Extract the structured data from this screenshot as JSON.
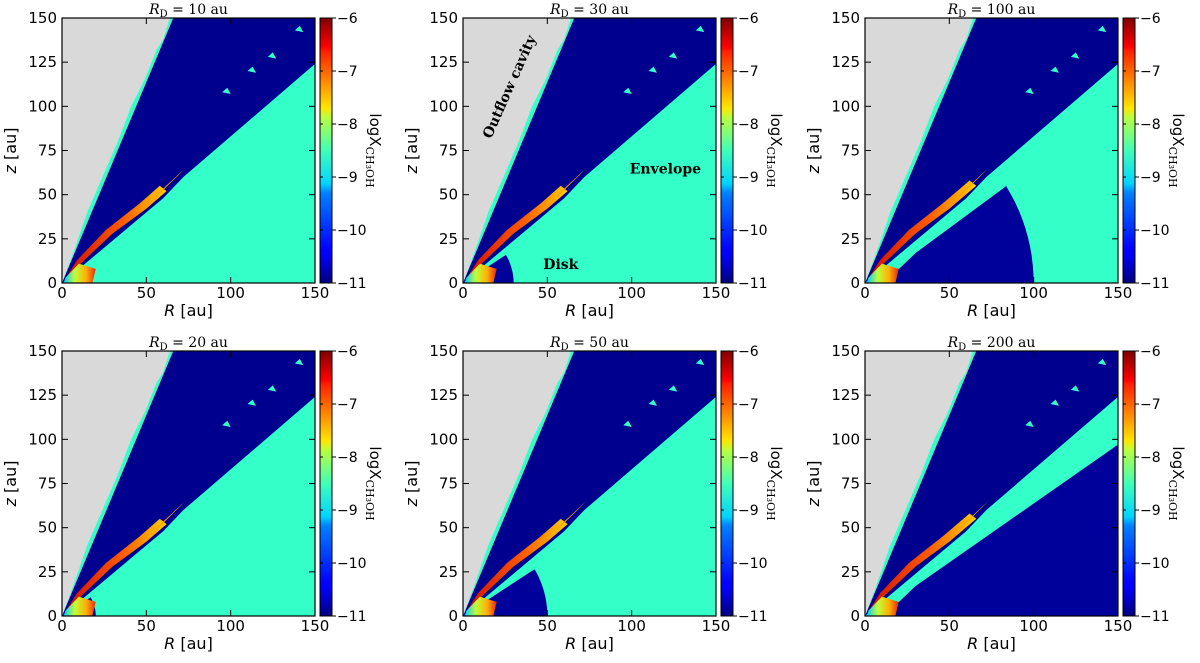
{
  "figure": {
    "colorbar_ticks": [
      "−6",
      "−7",
      "−8",
      "−9",
      "−10",
      "−11"
    ],
    "colorbar_label_prefix": "logX",
    "colorbar_label_sub": "CH₃OH",
    "colormap": "jet",
    "colors": {
      "cavity": "#d9d9d9",
      "outflow_wall": "#00008f",
      "envelope": "#35ffc8",
      "disk_inner": "#00009a",
      "ridge_hot": "#e02000",
      "ridge_warm": "#ffa000",
      "ridge_cool": "#e8f000"
    },
    "region_labels": {
      "outflow": "Outflow cavity",
      "envelope": "Envelope",
      "disk": "Disk"
    }
  },
  "chart_data": [
    {
      "type": "heatmap",
      "title": "R_D = 10 au",
      "title_main": "R",
      "title_sub": "D",
      "title_rest": " = 10 au",
      "disk_radius_au": 10,
      "xlabel": "R [au]",
      "ylabel": "z [au]",
      "xlim": [
        0,
        150
      ],
      "ylim": [
        0,
        150
      ],
      "xticks": [
        "0",
        "50",
        "100",
        "150"
      ],
      "yticks": [
        "0",
        "25",
        "50",
        "75",
        "100",
        "125",
        "150"
      ],
      "clim": [
        -11,
        -6
      ],
      "colorbar_label": "logX_CH3OH",
      "levels": {
        "cavity": "masked",
        "outflow_wall": -11,
        "envelope": -9,
        "disk": -11
      }
    },
    {
      "type": "heatmap",
      "title": "R_D = 30 au",
      "title_main": "R",
      "title_sub": "D",
      "title_rest": " = 30 au",
      "disk_radius_au": 30,
      "xlabel": "R [au]",
      "ylabel": "z [au]",
      "xlim": [
        0,
        150
      ],
      "ylim": [
        0,
        150
      ],
      "xticks": [
        "0",
        "50",
        "100",
        "150"
      ],
      "yticks": [
        "0",
        "25",
        "50",
        "75",
        "100",
        "125",
        "150"
      ],
      "clim": [
        -11,
        -6
      ],
      "colorbar_label": "logX_CH3OH",
      "annotations": [
        "Outflow cavity",
        "Envelope",
        "Disk"
      ],
      "levels": {
        "cavity": "masked",
        "outflow_wall": -11,
        "envelope": -9,
        "disk": -11
      }
    },
    {
      "type": "heatmap",
      "title": "R_D = 100 au",
      "title_main": "R",
      "title_sub": "D",
      "title_rest": " = 100 au",
      "disk_radius_au": 100,
      "xlabel": "R [au]",
      "ylabel": "z [au]",
      "xlim": [
        0,
        150
      ],
      "ylim": [
        0,
        150
      ],
      "xticks": [
        "0",
        "50",
        "100",
        "150"
      ],
      "yticks": [
        "0",
        "25",
        "50",
        "75",
        "100",
        "125",
        "150"
      ],
      "clim": [
        -11,
        -6
      ],
      "colorbar_label": "logX_CH3OH",
      "levels": {
        "cavity": "masked",
        "outflow_wall": -11,
        "envelope": -9,
        "disk": -11
      }
    },
    {
      "type": "heatmap",
      "title": "R_D = 20 au",
      "title_main": "R",
      "title_sub": "D",
      "title_rest": " = 20 au",
      "disk_radius_au": 20,
      "xlabel": "R [au]",
      "ylabel": "z [au]",
      "xlim": [
        0,
        150
      ],
      "ylim": [
        0,
        150
      ],
      "xticks": [
        "0",
        "50",
        "100",
        "150"
      ],
      "yticks": [
        "0",
        "25",
        "50",
        "75",
        "100",
        "125",
        "150"
      ],
      "clim": [
        -11,
        -6
      ],
      "colorbar_label": "logX_CH3OH",
      "levels": {
        "cavity": "masked",
        "outflow_wall": -11,
        "envelope": -9,
        "disk": -11
      }
    },
    {
      "type": "heatmap",
      "title": "R_D = 50 au",
      "title_main": "R",
      "title_sub": "D",
      "title_rest": " = 50 au",
      "disk_radius_au": 50,
      "xlabel": "R [au]",
      "ylabel": "z [au]",
      "xlim": [
        0,
        150
      ],
      "ylim": [
        0,
        150
      ],
      "xticks": [
        "0",
        "50",
        "100",
        "150"
      ],
      "yticks": [
        "0",
        "25",
        "50",
        "75",
        "100",
        "125",
        "150"
      ],
      "clim": [
        -11,
        -6
      ],
      "colorbar_label": "logX_CH3OH",
      "levels": {
        "cavity": "masked",
        "outflow_wall": -11,
        "envelope": -9,
        "disk": -11
      }
    },
    {
      "type": "heatmap",
      "title": "R_D = 200 au",
      "title_main": "R",
      "title_sub": "D",
      "title_rest": " = 200 au",
      "disk_radius_au": 200,
      "xlabel": "R [au]",
      "ylabel": "z [au]",
      "xlim": [
        0,
        150
      ],
      "ylim": [
        0,
        150
      ],
      "xticks": [
        "0",
        "50",
        "100",
        "150"
      ],
      "yticks": [
        "0",
        "25",
        "50",
        "75",
        "100",
        "125",
        "150"
      ],
      "clim": [
        -11,
        -6
      ],
      "colorbar_label": "logX_CH3OH",
      "levels": {
        "cavity": "masked",
        "outflow_wall": -11,
        "envelope": -9,
        "disk": -11
      }
    }
  ]
}
